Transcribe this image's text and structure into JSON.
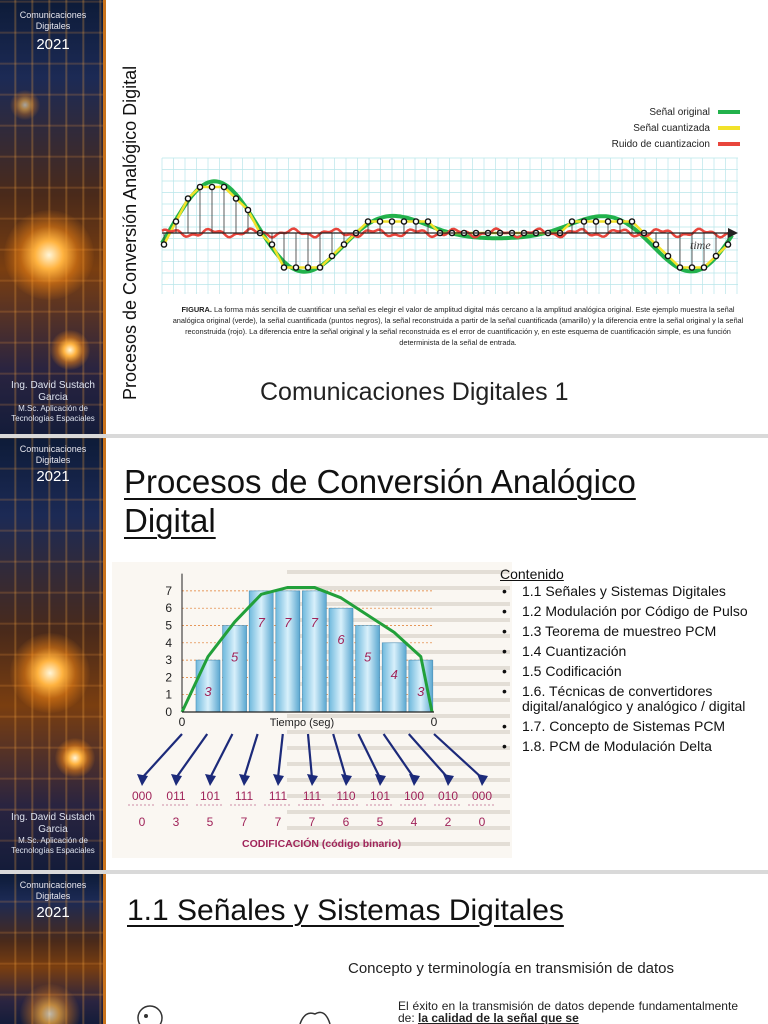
{
  "sidebar": {
    "course_line1": "Comunicaciones",
    "course_line2": "Digitales",
    "year": "2021",
    "author_line1": "Ing. David Sustach",
    "author_line2": "Garcia",
    "author_line3": "M.Sc. Aplicación de",
    "author_line4": "Tecnologías Espaciales"
  },
  "slide1": {
    "vertical_title": "Procesos de Conversión Analógico Digital",
    "legend": {
      "original": "Señal original",
      "quantized": "Señal cuantizada",
      "noise": "Ruido de cuantizacion"
    },
    "time_label": "time",
    "caption_bold": "FIGURA.",
    "caption": " La forma más sencilla de cuantificar una señal es elegir el valor de amplitud digital más cercano a la amplitud analógica original. Este ejemplo muestra la señal analógica original (verde), la señal cuantificada (puntos negros), la señal reconstruida a partir de la señal cuantificada (amarillo) y la diferencia entre la señal original y la señal reconstruida (rojo). La diferencia entre la señal original y la señal reconstruida es el error de cuantificación y, en este esquema de cuantificación simple, es una función determinista de la señal de entrada.",
    "subtitle": "Comunicaciones Digitales 1",
    "colors": {
      "original": "#22b24c",
      "quantized": "#f2e22a",
      "noise": "#e8453c"
    }
  },
  "slide2": {
    "title": "Procesos de Conversión Analógico Digital",
    "pcm": {
      "y_ticks": [
        "7",
        "6",
        "5",
        "4",
        "3",
        "2",
        "1",
        "0"
      ],
      "x_start": "0",
      "x_end": "0",
      "x_label": "Tiempo (seg)",
      "bar_values": [
        "3",
        "5",
        "7",
        "7",
        "7",
        "6",
        "5",
        "4",
        "3"
      ],
      "codes": [
        "000",
        "011",
        "101",
        "111",
        "111",
        "111",
        "110",
        "101",
        "100",
        "010",
        "000"
      ],
      "decimals": [
        "0",
        "3",
        "5",
        "7",
        "7",
        "7",
        "6",
        "5",
        "4",
        "2",
        "0"
      ],
      "codif_label": "CODIFICACIÓN (código binario)"
    },
    "contents_heading": "Contenido",
    "contents": [
      "1.1 Señales y Sistemas Digitales",
      "1.2 Modulación por Código de Pulso",
      "1.3 Teorema de muestreo PCM",
      "1.4 Cuantización",
      "1.5 Codificación",
      "1.6. Técnicas de convertidores digital/analógico y analógico / digital",
      "1.7. Concepto de Sistemas PCM",
      "1.8. PCM de Modulación Delta"
    ]
  },
  "slide3": {
    "title": "1.1 Señales y Sistemas Digitales",
    "subtitle": "Concepto y terminología en transmisión de datos",
    "bullet_start": "El éxito en la transmisión de datos depende fundamentalmente de: ",
    "bullet_bold": "la calidad de la señal que se"
  }
}
